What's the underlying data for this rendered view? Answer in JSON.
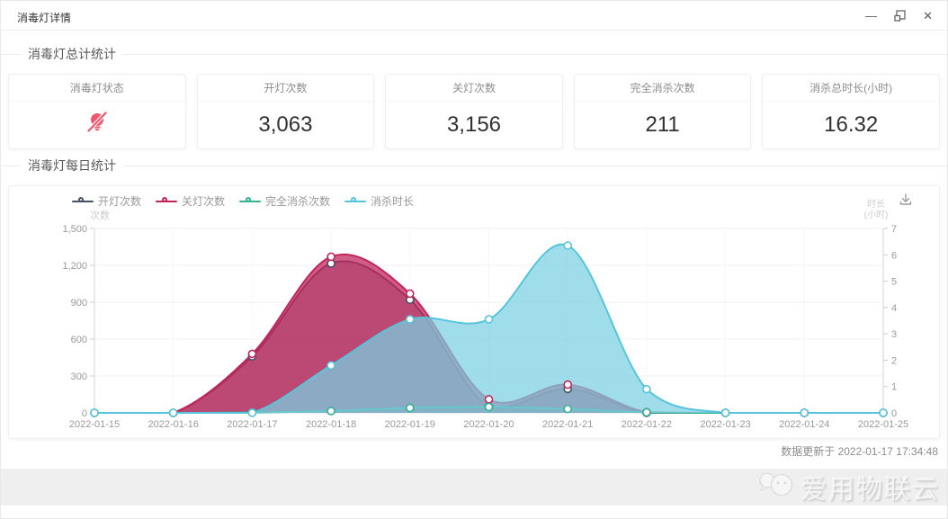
{
  "window": {
    "title": "消毒灯详情",
    "minimize_glyph": "—",
    "close_glyph": "✕"
  },
  "sections": {
    "total": "消毒灯总计统计",
    "daily": "消毒灯每日统计"
  },
  "stat_cards": [
    {
      "label": "消毒灯状态",
      "icon": "lamp-off-icon",
      "icon_color": "#f2566c"
    },
    {
      "label": "开灯次数",
      "value": "3,063"
    },
    {
      "label": "关灯次数",
      "value": "3,156"
    },
    {
      "label": "完全消杀次数",
      "value": "211"
    },
    {
      "label": "消杀总时长(小时)",
      "value": "16.32"
    }
  ],
  "chart_data": {
    "type": "area",
    "x": [
      "2022-01-15",
      "2022-01-16",
      "2022-01-17",
      "2022-01-18",
      "2022-01-19",
      "2022-01-20",
      "2022-01-21",
      "2022-01-22",
      "2022-01-23",
      "2022-01-24",
      "2022-01-25"
    ],
    "series": [
      {
        "name": "开灯次数",
        "axis": "left",
        "color": "#475166",
        "fill_opacity": 0.45,
        "values": [
          0,
          0,
          460,
          1215,
          920,
          50,
          195,
          0,
          0,
          0,
          0
        ]
      },
      {
        "name": "关灯次数",
        "axis": "left",
        "color": "#c2255c",
        "fill_opacity": 0.75,
        "values": [
          0,
          0,
          480,
          1270,
          970,
          110,
          230,
          5,
          0,
          0,
          0
        ]
      },
      {
        "name": "完全消杀次数",
        "axis": "left",
        "color": "#34b095",
        "fill_opacity": 0.25,
        "values": [
          0,
          0,
          3,
          15,
          40,
          48,
          32,
          4,
          0,
          0,
          0
        ]
      },
      {
        "name": "消杀时长",
        "axis": "right",
        "color": "#56c5db",
        "fill_color": "#7ad0e2",
        "fill_opacity": 0.72,
        "values": [
          0,
          0,
          0,
          1.8,
          3.55,
          3.55,
          6.35,
          0.9,
          0,
          0,
          0
        ]
      }
    ],
    "left_axis": {
      "name": "次数",
      "max": 1500,
      "tick_labels": [
        "1,500",
        "1,200",
        "900",
        "600",
        "300",
        "0"
      ]
    },
    "right_axis": {
      "name_line1": "时长",
      "name_line2": "(小时)",
      "max": 7,
      "tick_labels": [
        "7",
        "6",
        "5",
        "4",
        "3",
        "2",
        "1",
        "0"
      ]
    },
    "legend_position": "top-left",
    "grid": true
  },
  "footer": {
    "updated_text": "数据更新于 2022-01-17 17:34:48",
    "watermark": "爱用物联云"
  }
}
